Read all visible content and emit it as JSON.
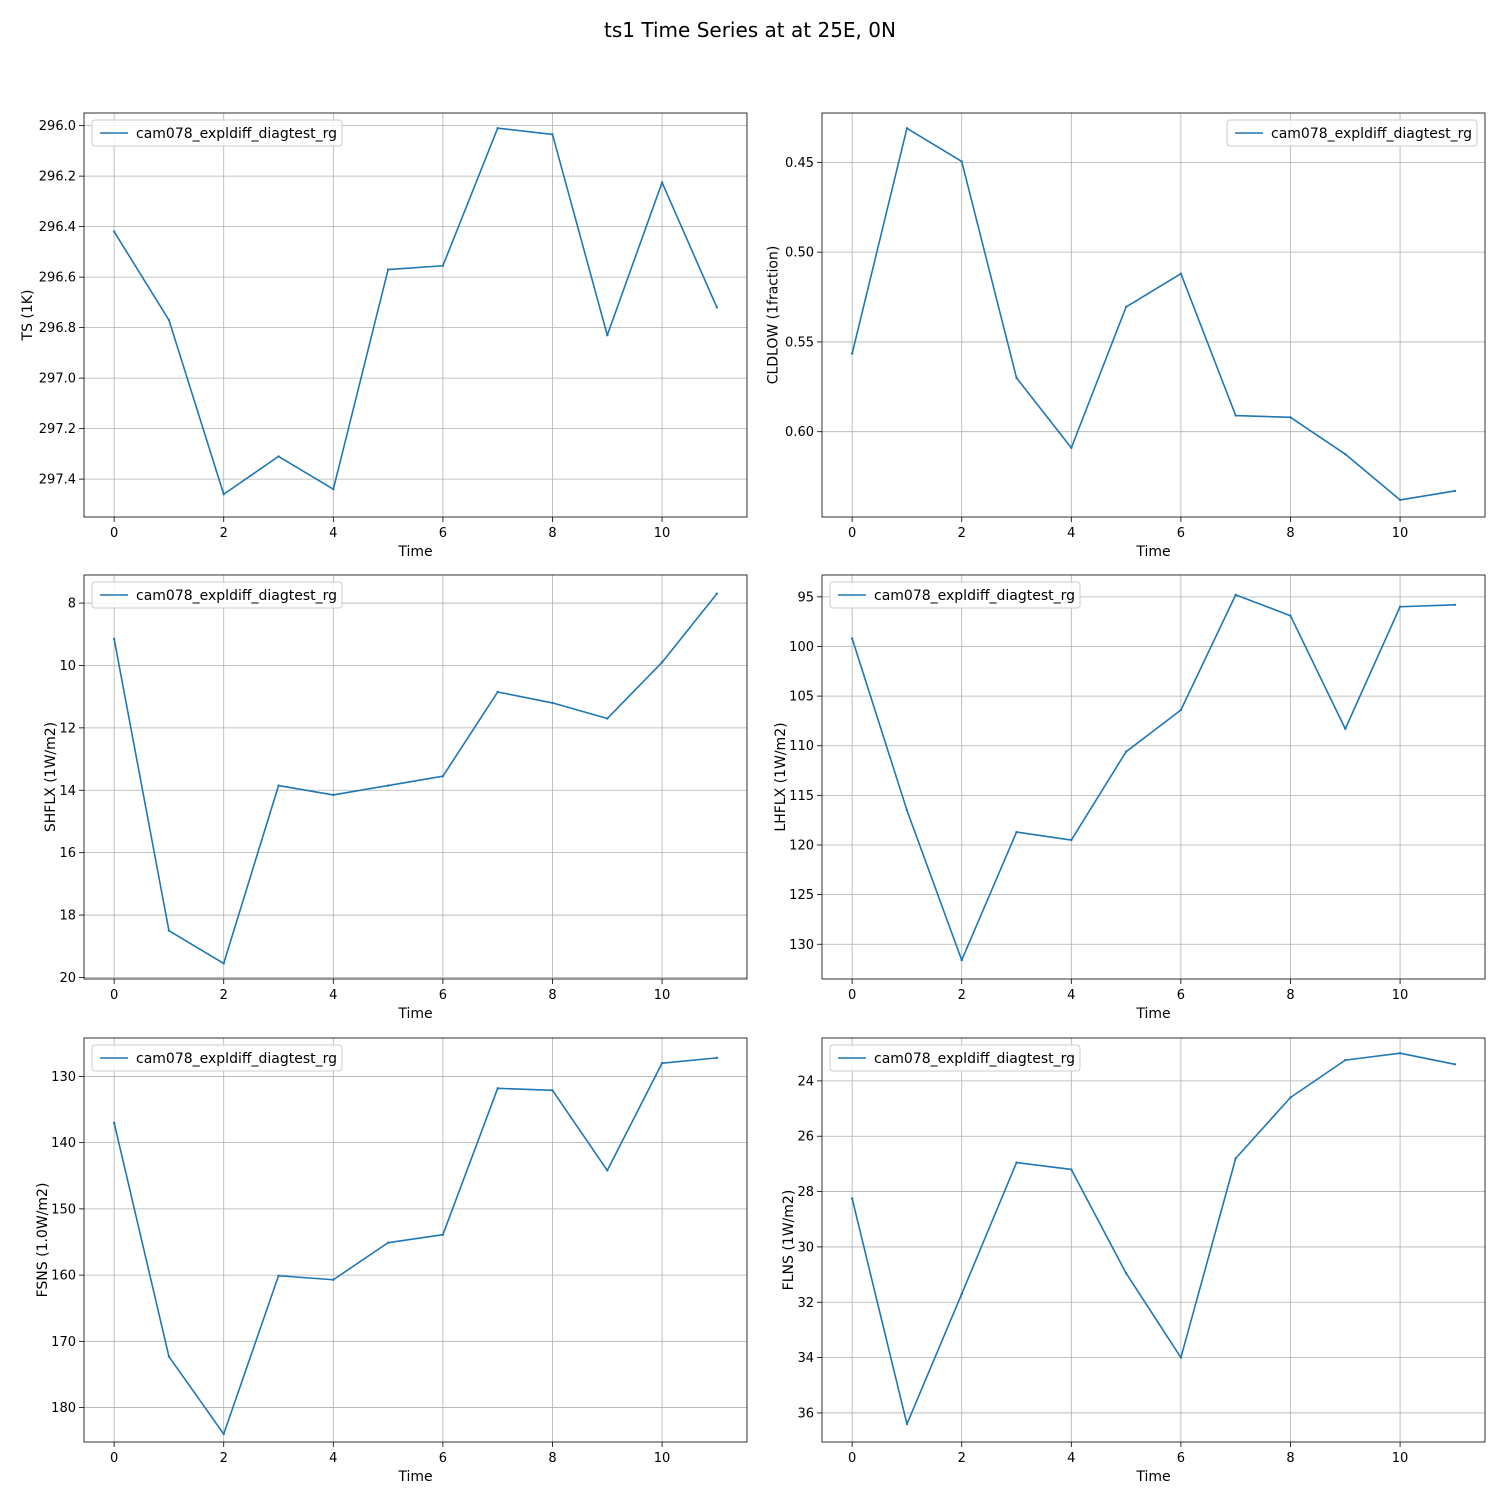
{
  "title": "ts1 Time Series at at 25E, 0N",
  "colors": {
    "series": "#1f77b4",
    "grid": "#b0b0b0",
    "legend_border": "#cccccc"
  },
  "chart_data": [
    {
      "type": "line",
      "xlabel": "Time",
      "ylabel": "TS (1K)",
      "y_inverted": true,
      "xlim": [
        -0.55,
        11.55
      ],
      "ylim": [
        297.55,
        295.95
      ],
      "xticks": [
        0,
        2,
        4,
        6,
        8,
        10
      ],
      "xtick_labels": [
        "0",
        "2",
        "4",
        "6",
        "8",
        "10"
      ],
      "yticks": [
        296.0,
        296.2,
        296.4,
        296.6,
        296.8,
        297.0,
        297.2,
        297.4
      ],
      "ytick_labels": [
        "296.0",
        "296.2",
        "296.4",
        "296.6",
        "296.8",
        "297.0",
        "297.2",
        "297.4"
      ],
      "grid": true,
      "legend_position": "upper left",
      "series": [
        {
          "name": "cam078_expldiff_diagtest_rg",
          "x": [
            0,
            1,
            2,
            3,
            4,
            5,
            6,
            7,
            8,
            9,
            10,
            11
          ],
          "y": [
            296.42,
            296.77,
            297.46,
            297.31,
            297.44,
            296.57,
            296.555,
            296.01,
            296.035,
            296.83,
            296.225,
            296.72
          ]
        }
      ]
    },
    {
      "type": "line",
      "xlabel": "Time",
      "ylabel": "CLDLOW (1fraction)",
      "y_inverted": true,
      "xlim": [
        -0.55,
        11.55
      ],
      "ylim": [
        0.6475,
        0.4225
      ],
      "xticks": [
        0,
        2,
        4,
        6,
        8,
        10
      ],
      "xtick_labels": [
        "0",
        "2",
        "4",
        "6",
        "8",
        "10"
      ],
      "yticks": [
        0.45,
        0.5,
        0.55,
        0.6
      ],
      "ytick_labels": [
        "0.45",
        "0.50",
        "0.55",
        "0.60"
      ],
      "grid": true,
      "legend_position": "upper right",
      "series": [
        {
          "name": "cam078_expldiff_diagtest_rg",
          "x": [
            0,
            1,
            2,
            3,
            4,
            5,
            6,
            7,
            8,
            9,
            10,
            11
          ],
          "y": [
            0.5565,
            0.431,
            0.4495,
            0.57,
            0.609,
            0.5305,
            0.512,
            0.591,
            0.592,
            0.6125,
            0.638,
            0.633
          ]
        }
      ]
    },
    {
      "type": "line",
      "xlabel": "Time",
      "ylabel": "SHFLX (1W/m2)",
      "y_inverted": true,
      "xlim": [
        -0.55,
        11.55
      ],
      "ylim": [
        20.05,
        7.1
      ],
      "xticks": [
        0,
        2,
        4,
        6,
        8,
        10
      ],
      "xtick_labels": [
        "0",
        "2",
        "4",
        "6",
        "8",
        "10"
      ],
      "yticks": [
        8,
        10,
        12,
        14,
        16,
        18,
        20
      ],
      "ytick_labels": [
        "8",
        "10",
        "12",
        "14",
        "16",
        "18",
        "20"
      ],
      "grid": true,
      "legend_position": "upper left",
      "series": [
        {
          "name": "cam078_expldiff_diagtest_rg",
          "x": [
            0,
            1,
            2,
            3,
            4,
            5,
            6,
            7,
            8,
            9,
            10,
            11
          ],
          "y": [
            9.15,
            18.5,
            19.55,
            13.85,
            14.15,
            13.85,
            13.55,
            10.85,
            11.2,
            11.7,
            9.9,
            7.7
          ]
        }
      ]
    },
    {
      "type": "line",
      "xlabel": "Time",
      "ylabel": "LHFLX (1W/m2)",
      "y_inverted": true,
      "xlim": [
        -0.55,
        11.55
      ],
      "ylim": [
        133.5,
        92.8
      ],
      "xticks": [
        0,
        2,
        4,
        6,
        8,
        10
      ],
      "xtick_labels": [
        "0",
        "2",
        "4",
        "6",
        "8",
        "10"
      ],
      "yticks": [
        95,
        100,
        105,
        110,
        115,
        120,
        125,
        130
      ],
      "ytick_labels": [
        "95",
        "100",
        "105",
        "110",
        "115",
        "120",
        "125",
        "130"
      ],
      "grid": true,
      "legend_position": "upper left",
      "series": [
        {
          "name": "cam078_expldiff_diagtest_rg",
          "x": [
            0,
            1,
            2,
            3,
            4,
            5,
            6,
            7,
            8,
            9,
            10,
            11
          ],
          "y": [
            99.2,
            116.5,
            131.6,
            118.7,
            119.5,
            110.6,
            106.4,
            94.8,
            96.9,
            108.3,
            96.0,
            95.8
          ]
        }
      ]
    },
    {
      "type": "line",
      "xlabel": "Time",
      "ylabel": "FSNS (1.0W/m2)",
      "y_inverted": true,
      "xlim": [
        -0.55,
        11.55
      ],
      "ylim": [
        185.2,
        124.2
      ],
      "xticks": [
        0,
        2,
        4,
        6,
        8,
        10
      ],
      "xtick_labels": [
        "0",
        "2",
        "4",
        "6",
        "8",
        "10"
      ],
      "yticks": [
        130,
        140,
        150,
        160,
        170,
        180
      ],
      "ytick_labels": [
        "130",
        "140",
        "150",
        "160",
        "170",
        "180"
      ],
      "grid": true,
      "legend_position": "upper left",
      "series": [
        {
          "name": "cam078_expldiff_diagtest_rg",
          "x": [
            0,
            1,
            2,
            3,
            4,
            5,
            6,
            7,
            8,
            9,
            10,
            11
          ],
          "y": [
            137.0,
            172.3,
            184.0,
            160.1,
            160.7,
            155.1,
            153.9,
            131.8,
            132.1,
            144.2,
            128.0,
            127.2
          ]
        }
      ]
    },
    {
      "type": "line",
      "xlabel": "Time",
      "ylabel": "FLNS (1W/m2)",
      "y_inverted": true,
      "xlim": [
        -0.55,
        11.55
      ],
      "ylim": [
        37.05,
        22.45
      ],
      "xticks": [
        0,
        2,
        4,
        6,
        8,
        10
      ],
      "xtick_labels": [
        "0",
        "2",
        "4",
        "6",
        "8",
        "10"
      ],
      "yticks": [
        24,
        26,
        28,
        30,
        32,
        34,
        36
      ],
      "ytick_labels": [
        "24",
        "26",
        "28",
        "30",
        "32",
        "34",
        "36"
      ],
      "grid": true,
      "legend_position": "upper left",
      "series": [
        {
          "name": "cam078_expldiff_diagtest_rg",
          "x": [
            0,
            1,
            2,
            3,
            4,
            5,
            6,
            7,
            8,
            9,
            10,
            11
          ],
          "y": [
            28.25,
            36.4,
            31.7,
            26.95,
            27.2,
            30.95,
            34.0,
            26.8,
            24.6,
            23.25,
            23.0,
            23.4
          ]
        }
      ]
    }
  ]
}
